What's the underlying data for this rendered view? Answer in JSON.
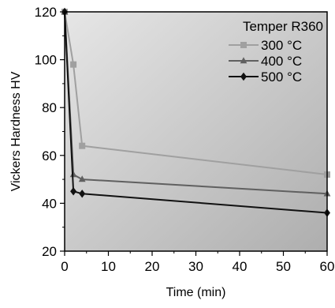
{
  "chart_data": {
    "type": "line",
    "xlabel": "Time (min)",
    "ylabel": "Vickers Hardness HV",
    "xlim": [
      0,
      60
    ],
    "ylim": [
      20,
      120
    ],
    "x_ticks": [
      0,
      10,
      20,
      30,
      40,
      50,
      60
    ],
    "y_ticks": [
      20,
      40,
      60,
      80,
      100,
      120
    ],
    "grid": false,
    "background": "gradient light-to-dark gray",
    "legend": {
      "title": "Temper R360",
      "position": "top-right"
    },
    "series": [
      {
        "name": "300 °C",
        "color": "#a0a0a0",
        "marker": "square",
        "x": [
          0,
          2,
          4,
          60
        ],
        "y": [
          120,
          98,
          64,
          52
        ]
      },
      {
        "name": "400 °C",
        "color": "#606060",
        "marker": "triangle",
        "x": [
          0,
          2,
          4,
          60
        ],
        "y": [
          120,
          52,
          50,
          44
        ]
      },
      {
        "name": "500 °C",
        "color": "#111111",
        "marker": "diamond",
        "x": [
          0,
          2,
          4,
          60
        ],
        "y": [
          120,
          45,
          44,
          36
        ]
      }
    ]
  }
}
